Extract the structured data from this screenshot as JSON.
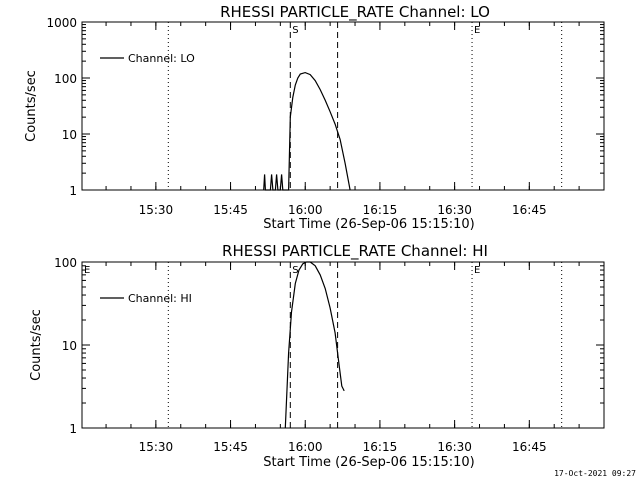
{
  "footer_timestamp": "17-Oct-2021 09:27",
  "chart_data": [
    {
      "type": "line",
      "title": "RHESSI PARTICLE_RATE Channel: LO",
      "xlabel": "Start Time (26-Sep-06 15:15:10)",
      "ylabel": "Counts/sec",
      "yscale": "log",
      "xlim": [
        "15:15:10",
        "17:00:00"
      ],
      "ylim": [
        1,
        1000
      ],
      "x_ticks": [
        "15:30",
        "15:45",
        "16:00",
        "16:15",
        "16:30",
        "16:45"
      ],
      "y_ticks": [
        "1",
        "10",
        "100",
        "1000"
      ],
      "legend": "top-left",
      "series": [
        {
          "name": "Channel: LO",
          "x": [
            "15:51:40",
            "15:51:50",
            "15:52:00",
            "15:53:00",
            "15:53:15",
            "15:53:30",
            "15:54:00",
            "15:54:15",
            "15:54:30",
            "15:55:00",
            "15:55:15",
            "15:55:30",
            "15:56:40",
            "15:57:00",
            "15:57:30",
            "15:58:00",
            "15:58:30",
            "15:59:00",
            "16:00:00",
            "16:01:00",
            "16:02:00",
            "16:03:00",
            "16:04:00",
            "16:05:00",
            "16:06:00",
            "16:07:00",
            "16:08:00",
            "16:09:00"
          ],
          "y": [
            1.0,
            1.9,
            1.0,
            1.0,
            1.9,
            1.0,
            1.0,
            1.9,
            1.0,
            1.0,
            1.9,
            1.0,
            1.0,
            20,
            45,
            75,
            100,
            118,
            125,
            115,
            90,
            62,
            40,
            25,
            15,
            8,
            3,
            1.0
          ]
        }
      ],
      "markers": [
        {
          "label": "S",
          "time": "15:57:00",
          "style": "dashed"
        },
        {
          "label": "",
          "time": "16:06:30",
          "style": "dashed"
        },
        {
          "label": "E",
          "time": "16:33:30",
          "style": "dotted"
        },
        {
          "label": "",
          "time": "15:32:30",
          "style": "dotted"
        },
        {
          "label": "",
          "time": "16:51:30",
          "style": "dotted"
        }
      ]
    },
    {
      "type": "line",
      "title": "RHESSI PARTICLE_RATE Channel: HI",
      "xlabel": "Start Time (26-Sep-06 15:15:10)",
      "ylabel": "Counts/sec",
      "yscale": "log",
      "xlim": [
        "15:15:10",
        "17:00:00"
      ],
      "ylim": [
        1,
        100
      ],
      "x_ticks": [
        "15:30",
        "15:45",
        "16:00",
        "16:15",
        "16:30",
        "16:45"
      ],
      "y_ticks": [
        "1",
        "10",
        "100"
      ],
      "legend": "top-left",
      "series": [
        {
          "name": "Channel: HI",
          "x": [
            "15:56:00",
            "15:56:40",
            "15:57:15",
            "15:58:00",
            "15:58:45",
            "15:59:30",
            "16:00:15",
            "16:01:00",
            "16:02:00",
            "16:03:00",
            "16:04:00",
            "16:05:00",
            "16:06:00",
            "16:06:45",
            "16:07:20",
            "16:07:50"
          ],
          "y": [
            1.0,
            8,
            25,
            55,
            80,
            95,
            100,
            100,
            90,
            70,
            48,
            28,
            14,
            6,
            3.2,
            2.8
          ]
        }
      ],
      "markers": [
        {
          "label": "S",
          "time": "15:57:00",
          "style": "dashed"
        },
        {
          "label": "",
          "time": "16:06:30",
          "style": "dashed"
        },
        {
          "label": "E",
          "time": "16:33:30",
          "style": "dotted"
        },
        {
          "label": "",
          "time": "15:32:30",
          "style": "dotted"
        },
        {
          "label": "",
          "time": "16:51:30",
          "style": "dotted"
        },
        {
          "label": "E",
          "time": "15:15:10",
          "style": "none"
        }
      ]
    }
  ]
}
